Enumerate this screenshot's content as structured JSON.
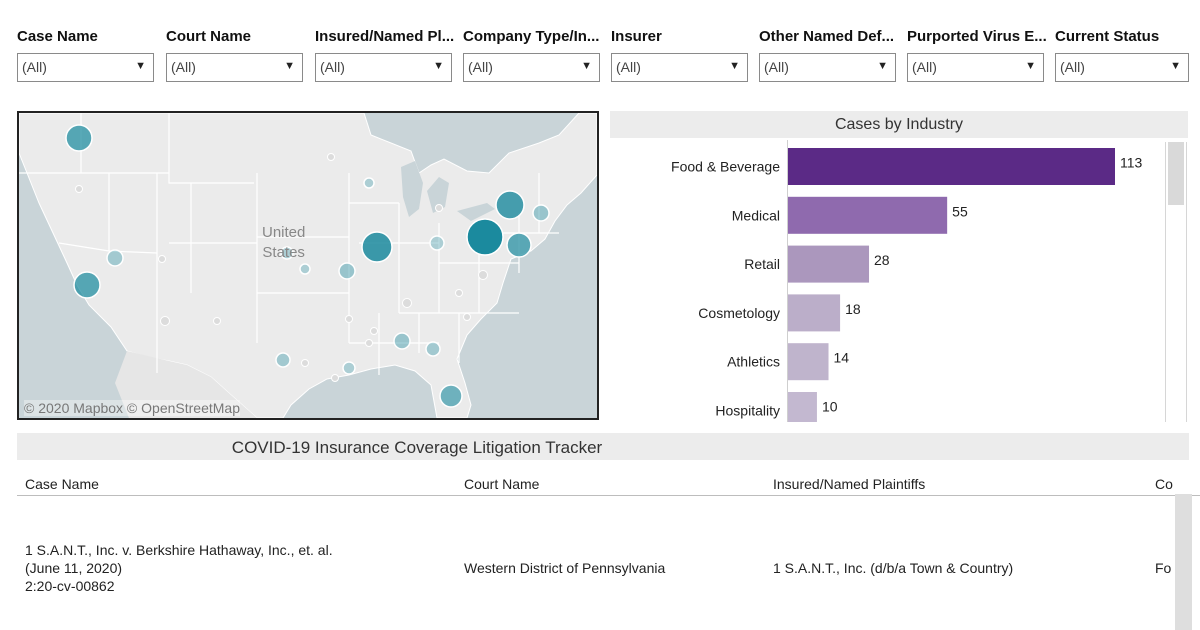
{
  "filters": [
    {
      "label": "Case Name",
      "value": "(All)"
    },
    {
      "label": "Court Name",
      "value": "(All)"
    },
    {
      "label": "Insured/Named Pl...",
      "value": "(All)"
    },
    {
      "label": "Company Type/In...",
      "value": "(All)"
    },
    {
      "label": "Insurer",
      "value": "(All)"
    },
    {
      "label": "Other Named Def...",
      "value": "(All)"
    },
    {
      "label": "Purported Virus E...",
      "value": "(All)"
    },
    {
      "label": "Current Status",
      "value": "(All)"
    }
  ],
  "map": {
    "country_label_line1": "United",
    "country_label_line2": "States",
    "credit": "© 2020 Mapbox © OpenStreetMap",
    "colors": {
      "water": "#c9d4d8",
      "land": "#ebebeb",
      "border": "#ffffff",
      "bubble": "#1b8a9e"
    }
  },
  "chart": {
    "title": "Cases by Industry",
    "colors": [
      "#5b2a86",
      "#8f6aae",
      "#ab97bd",
      "#bbaec9",
      "#bfb4cc",
      "#c3b8d0"
    ]
  },
  "chart_data": {
    "type": "bar",
    "orientation": "horizontal",
    "title": "Cases by Industry",
    "categories": [
      "Food & Beverage",
      "Medical",
      "Retail",
      "Cosmetology",
      "Athletics",
      "Hospitality"
    ],
    "values": [
      113,
      55,
      28,
      18,
      14,
      10
    ],
    "data_labels": [
      "113",
      "55",
      "28",
      "18",
      "14",
      "10"
    ],
    "xlim": [
      0,
      120
    ],
    "grid": false,
    "legend": "none"
  },
  "table": {
    "title": "COVID-19 Insurance Coverage Litigation Tracker",
    "headers": [
      "Case Name",
      "Court Name",
      "Insured/Named Plaintiffs",
      "Co"
    ],
    "rows": [
      {
        "case_line1": "1 S.A.N.T., Inc. v. Berkshire Hathaway, Inc., et. al.",
        "case_line2": "(June 11, 2020)",
        "case_line3": "2:20-cv-00862",
        "court": "Western District of Pennsylvania",
        "plaintiffs": "1 S.A.N.T., Inc. (d/b/a Town & Country)",
        "company_type": "Fo"
      }
    ]
  }
}
